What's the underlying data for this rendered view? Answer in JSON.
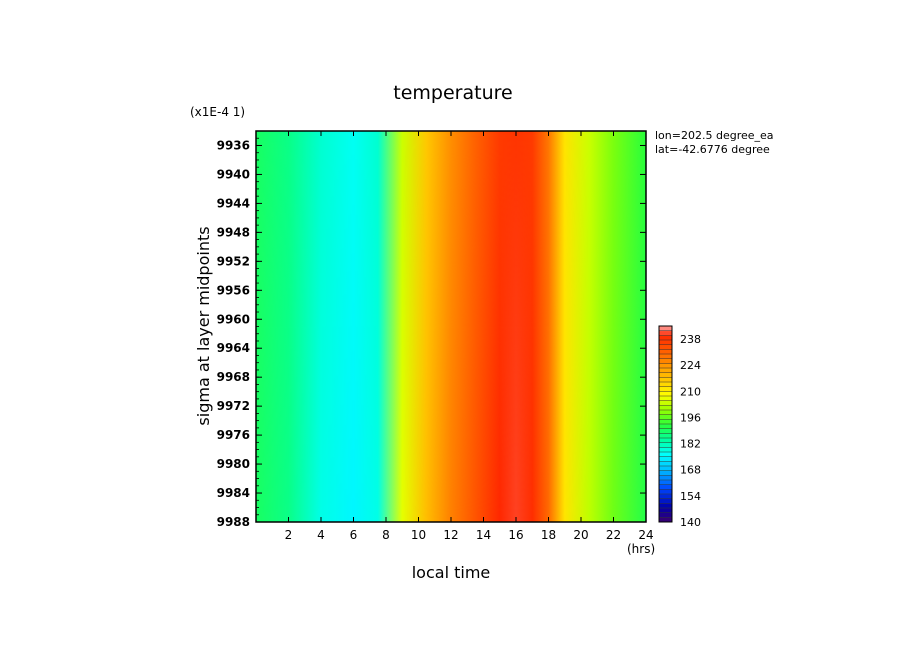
{
  "chart_data": {
    "type": "heatmap",
    "title": "temperature",
    "scale_note": "(x1E-4 1)",
    "xlabel": "local time",
    "x_unit": "(hrs)",
    "ylabel": "sigma at layer midpoints",
    "annotations": [
      "lon=202.5 degree_ea",
      "lat=-42.6776 degree"
    ],
    "x_ticks": [
      2,
      4,
      6,
      8,
      10,
      12,
      14,
      16,
      18,
      20,
      22,
      24
    ],
    "xlim": [
      0,
      24
    ],
    "y_ticks": [
      9936,
      9940,
      9944,
      9948,
      9952,
      9956,
      9960,
      9964,
      9968,
      9972,
      9976,
      9980,
      9984,
      9988
    ],
    "ylim": [
      9988,
      9934
    ],
    "colorbar": {
      "levels": [
        140,
        154,
        168,
        182,
        196,
        210,
        224,
        238
      ],
      "range": [
        140,
        245
      ]
    },
    "columns": [
      {
        "x": 0,
        "top": 189,
        "bottom": 189
      },
      {
        "x": 2,
        "top": 186,
        "bottom": 186
      },
      {
        "x": 4,
        "top": 180,
        "bottom": 178
      },
      {
        "x": 6,
        "top": 177,
        "bottom": 175
      },
      {
        "x": 7.5,
        "top": 180,
        "bottom": 178
      },
      {
        "x": 9,
        "top": 204,
        "bottom": 206
      },
      {
        "x": 10.5,
        "top": 216,
        "bottom": 218
      },
      {
        "x": 12,
        "top": 225,
        "bottom": 227
      },
      {
        "x": 13.5,
        "top": 231,
        "bottom": 233
      },
      {
        "x": 15,
        "top": 237,
        "bottom": 240
      },
      {
        "x": 16,
        "top": 238,
        "bottom": 241
      },
      {
        "x": 17,
        "top": 237,
        "bottom": 239
      },
      {
        "x": 18,
        "top": 228,
        "bottom": 230
      },
      {
        "x": 19,
        "top": 212,
        "bottom": 212
      },
      {
        "x": 20.5,
        "top": 204,
        "bottom": 203
      },
      {
        "x": 22,
        "top": 198,
        "bottom": 197
      },
      {
        "x": 24,
        "top": 192,
        "bottom": 191
      }
    ]
  }
}
